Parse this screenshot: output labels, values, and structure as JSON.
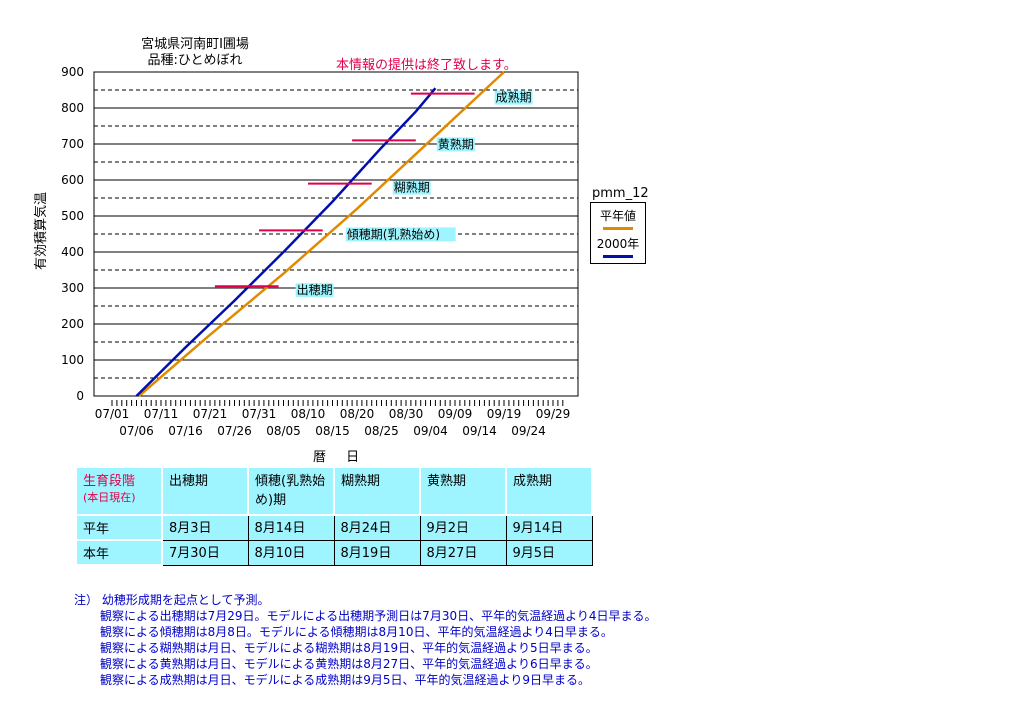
{
  "header": {
    "title_line1": "宮城県河南町I圃場",
    "title_line2": "品種:ひとめぼれ",
    "notice": "本情報の提供は終了致します。"
  },
  "legend": {
    "title": "pmm_12",
    "items": [
      {
        "label": "平年値",
        "color": "#e08a00"
      },
      {
        "label": "2000年",
        "color": "#0010b0"
      }
    ]
  },
  "chart_data": {
    "type": "line",
    "ylabel": "有効積算気温",
    "xlabel": "暦 日",
    "ylim": [
      0,
      900
    ],
    "yticks": [
      0,
      100,
      200,
      300,
      400,
      500,
      600,
      700,
      800,
      900
    ],
    "xticks_row1": [
      "07/01",
      "07/11",
      "07/21",
      "07/31",
      "08/10",
      "08/20",
      "08/30",
      "09/09",
      "09/19",
      "09/29"
    ],
    "xticks_row2": [
      "07/06",
      "07/16",
      "07/26",
      "08/05",
      "08/15",
      "08/25",
      "09/04",
      "09/14",
      "09/24"
    ],
    "x_unit": "days since 07/01",
    "xlim": [
      0,
      95
    ],
    "series": [
      {
        "name": "平年値",
        "color": "#e08a00",
        "points": [
          [
            5.5,
            0
          ],
          [
            20,
            170
          ],
          [
            35,
            340
          ],
          [
            50,
            520
          ],
          [
            65,
            710
          ],
          [
            80,
            900
          ]
        ]
      },
      {
        "name": "2000年",
        "color": "#0010b0",
        "points": [
          [
            5,
            0
          ],
          [
            15,
            135
          ],
          [
            25,
            265
          ],
          [
            35,
            400
          ],
          [
            45,
            540
          ],
          [
            55,
            690
          ],
          [
            62,
            790
          ],
          [
            66,
            855
          ]
        ]
      }
    ],
    "stages": [
      {
        "label": "出穂期",
        "value": 305,
        "x": [
          21,
          34
        ]
      },
      {
        "label": "傾穂期(乳熟始め)",
        "value": 460,
        "x": [
          30,
          43
        ]
      },
      {
        "label": "糊熟期",
        "value": 590,
        "x": [
          40,
          53
        ]
      },
      {
        "label": "黄熟期",
        "value": 710,
        "x": [
          49,
          62
        ]
      },
      {
        "label": "成熟期",
        "value": 840,
        "x": [
          61,
          74
        ]
      }
    ]
  },
  "table": {
    "corner_line1": "生育段階",
    "corner_line2": "(本日現在)",
    "headers": [
      "出穂期",
      "傾穂(乳熟始め)期",
      "糊熟期",
      "黄熟期",
      "成熟期"
    ],
    "rows": [
      {
        "label": "平年",
        "values": [
          "8月3日",
          "8月14日",
          "8月24日",
          "9月2日",
          "9月14日"
        ]
      },
      {
        "label": "本年",
        "values": [
          "7月30日",
          "8月10日",
          "8月19日",
          "8月27日",
          "9月5日"
        ]
      }
    ]
  },
  "notes": [
    "注） 幼穂形成期を起点として予測。",
    "観察による出穂期は7月29日。モデルによる出穂期予測日は7月30日、平年的気温経過より4日早まる。",
    "観察による傾穂期は8月8日。モデルによる傾穂期は8月10日、平年的気温経過より4日早まる。",
    "観察による糊熟期は月日、モデルによる糊熟期は8月19日、平年的気温経過より5日早まる。",
    "観察による黄熟期は月日、モデルによる黄熟期は8月27日、平年的気温経過より6日早まる。",
    "観察による成熟期は月日、モデルによる成熟期は9月5日、平年的気温経過より9日早まる。"
  ]
}
